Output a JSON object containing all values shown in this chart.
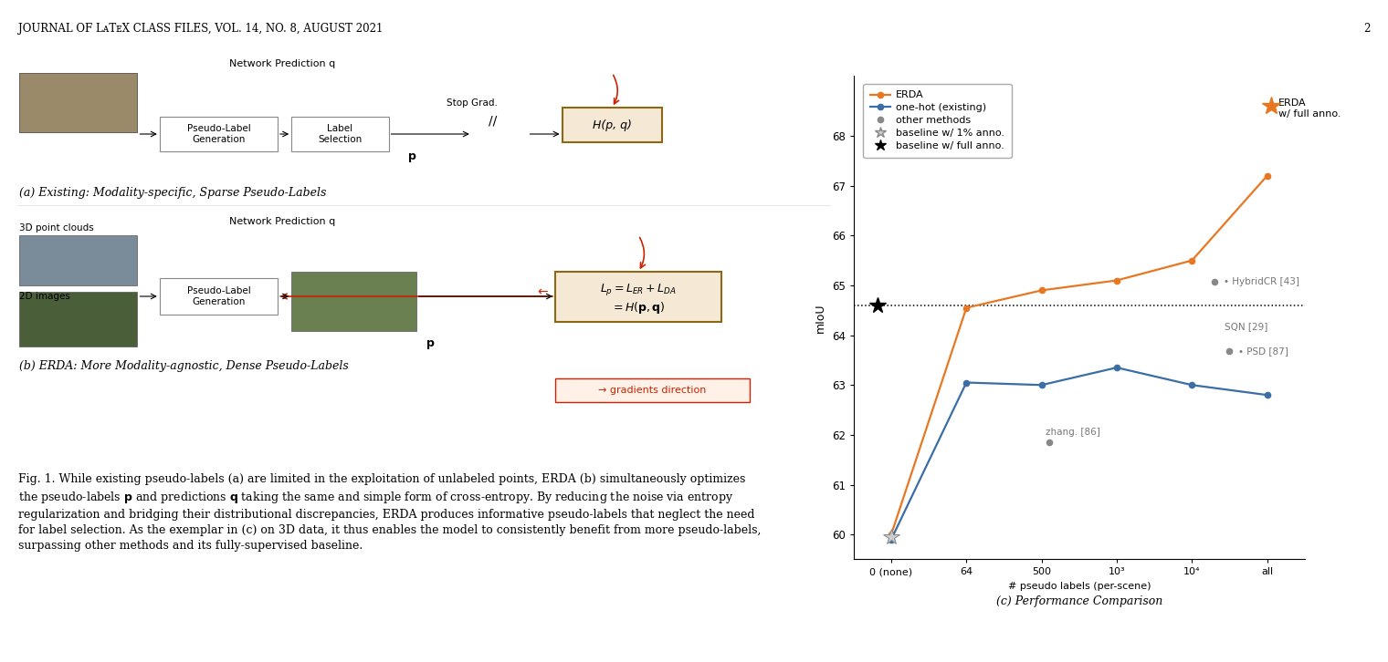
{
  "chart_title": "(c) Performance Comparison",
  "ylabel": "mIoU",
  "xlabel": "# pseudo labels (per-scene)",
  "xtick_labels": [
    "0 (none)",
    "64",
    "500",
    "10³",
    "10⁴",
    "all"
  ],
  "xtick_positions": [
    0,
    1,
    2,
    3,
    4,
    5
  ],
  "ylim": [
    59.5,
    69.2
  ],
  "ytick_values": [
    60,
    61,
    62,
    63,
    64,
    65,
    66,
    67,
    68
  ],
  "erda_x": [
    0,
    1,
    2,
    3,
    4,
    5
  ],
  "erda_y": [
    60.0,
    64.55,
    64.9,
    65.1,
    65.5,
    67.2
  ],
  "onehot_x": [
    0,
    1,
    2,
    3,
    4,
    5
  ],
  "onehot_y": [
    59.9,
    63.05,
    63.0,
    63.35,
    63.0,
    62.8
  ],
  "erda_color": "#E87722",
  "onehot_color": "#3A6EA5",
  "baseline_full_anno_y": 64.6,
  "baseline_1pct_anno_x": 0,
  "baseline_1pct_anno_y": 59.95,
  "erda_full_anno_x": 5.05,
  "erda_full_anno_y": 68.6,
  "hybridcr_x": 4.3,
  "hybridcr_y": 65.08,
  "sqn_x": 4.35,
  "sqn_y": 64.18,
  "psd_x": 4.5,
  "psd_y": 63.68,
  "zhang_x": 2.1,
  "zhang_y": 61.85,
  "other_color": "#888888",
  "annotation_color": "#777777",
  "header": "JOURNAL OF LᴀTᴇX CLASS FILES, VOL. 14, NO. 8, AUGUST 2021",
  "page_num": "2",
  "label_a": "(a) Existing: Modality-specific, Sparse Pseudo-Labels",
  "label_b": "(b) ERDA: More Modality-agnostic, Dense Pseudo-Labels",
  "caption": "Fig. 1. While existing pseudo-labels (a) are limited in the exploitation of unlabeled points, ERDA (b) simultaneously optimizes\nthe pseudo-labels p and predictions q taking the same and simple form of cross-entropy. By reducing the noise via entropy\nregularization and bridging their distributional discrepancies, ERDA produces informative pseudo-labels that neglect the need\nfor label selection. As the exemplar in (c) on 3D data, it thus enables the model to consistently benefit from more pseudo-labels,\nsurpassing other methods and its fully-supervised baseline.",
  "network_pred_a": "Network Prediction q",
  "stop_grad": "Stop Grad.",
  "h_pq_a": "H(p, q)",
  "pseudo_label_gen_a": "Pseudo-Label\nGeneration",
  "label_selection": "Label\nSelection",
  "p_label_a": "p",
  "network_pred_b": "Network Prediction q",
  "pseudo_label_gen_b": "Pseudo-Label\nGeneration",
  "p_label_b": "p",
  "lp_formula": "L_p = L_ER + L_DA\n= H(p, q)",
  "grad_direction": "→ gradients direction",
  "point_clouds_label": "3D point clouds",
  "images_label": "2D images"
}
